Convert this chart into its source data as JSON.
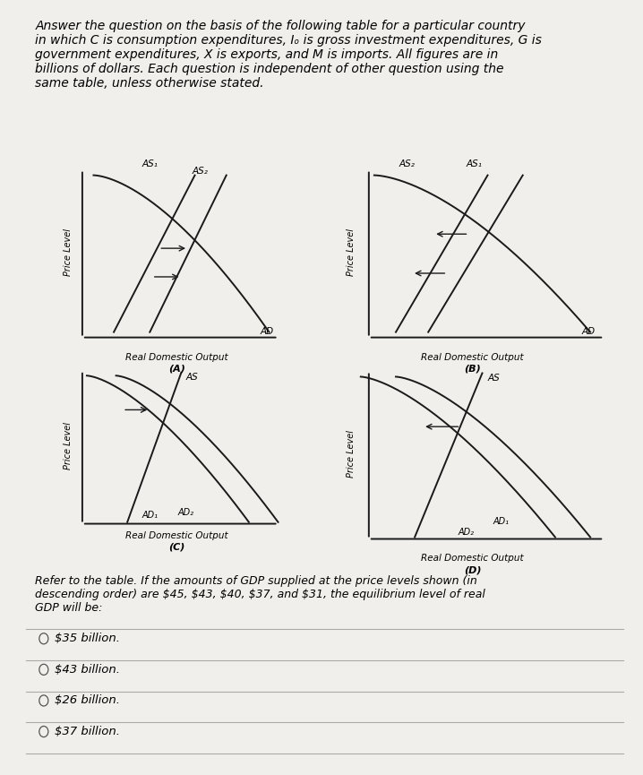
{
  "background_color": "#f0efeb",
  "header_text": "Answer the question on the basis of the following table for a particular country\nin which C is consumption expenditures, Iₒ is gross investment expenditures, G is\ngovernment expenditures, X is exports, and M is imports. All figures are in\nbillions of dollars. Each question is independent of other question using the\nsame table, unless otherwise stated.",
  "question_text": "Refer to the table. If the amounts of GDP supplied at the price levels shown (in\ndescending order) are $45, $43, $40, $37, and $31, the equilibrium level of real\nGDP will be:",
  "choices": [
    "$35 billion.",
    "$43 billion.",
    "$26 billion.",
    "$37 billion."
  ],
  "line_color": "#1a1a1a",
  "font_size_header": 10.0,
  "font_size_label": 9.0,
  "font_size_choice": 9.5
}
